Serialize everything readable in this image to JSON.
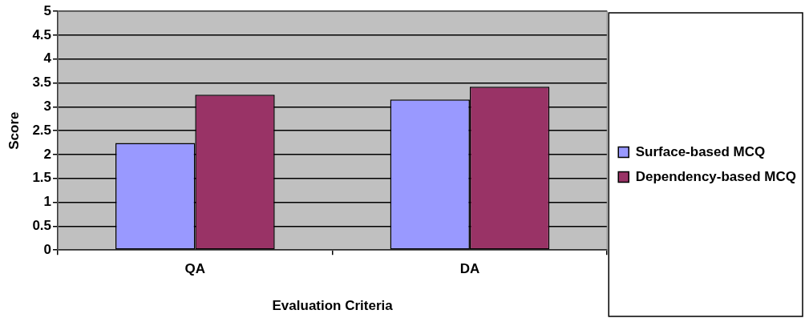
{
  "chart_data": {
    "type": "bar",
    "xlabel": "Evaluation Criteria",
    "ylabel": "Score",
    "categories": [
      "QA",
      "DA"
    ],
    "series": [
      {
        "name": "Surface-based MCQ",
        "color": "#9999ff",
        "values": [
          2.24,
          3.15
        ]
      },
      {
        "name": "Dependency-based MCQ",
        "color": "#993366",
        "values": [
          3.25,
          3.42
        ]
      }
    ],
    "ylim": [
      0,
      5
    ],
    "yticks": [
      0,
      0.5,
      1,
      1.5,
      2,
      2.5,
      3,
      3.5,
      4,
      4.5,
      5
    ],
    "grid": "y",
    "legend": "right"
  }
}
